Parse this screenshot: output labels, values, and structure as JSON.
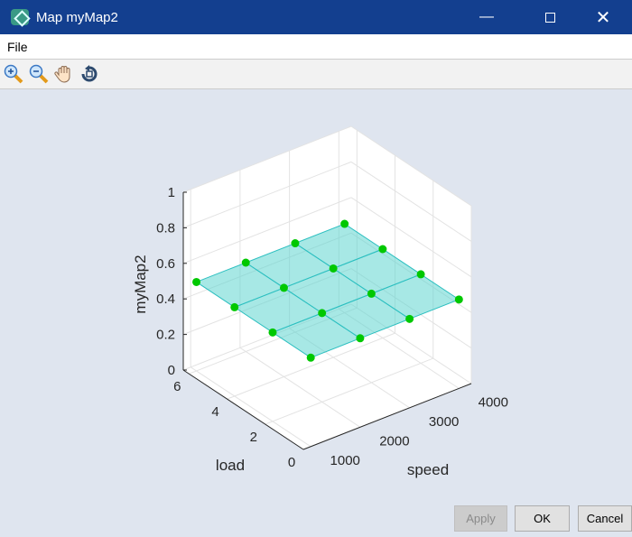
{
  "window": {
    "title": "Map myMap2",
    "minimize_icon": "minimize-icon",
    "maximize_icon": "maximize-icon",
    "close_icon": "close-icon"
  },
  "menu": {
    "file": "File"
  },
  "toolbar": {
    "icons": [
      "zoom-in-icon",
      "zoom-out-icon",
      "pan-hand-icon",
      "rotate-3d-icon"
    ]
  },
  "buttons": {
    "apply": "Apply",
    "ok": "OK",
    "cancel": "Cancel"
  },
  "chart_data": {
    "type": "surface3d",
    "xlabel": "speed",
    "ylabel": "load",
    "zlabel": "myMap2",
    "xlim": [
      850,
      4250
    ],
    "ylim": [
      0,
      6.3
    ],
    "zlim": [
      0,
      1
    ],
    "xticks": [
      "1000",
      "2000",
      "3000",
      "4000"
    ],
    "yticks": [
      "0",
      "2",
      "4",
      "6"
    ],
    "zticks": [
      "0",
      "0.2",
      "0.4",
      "0.6",
      "0.8",
      "1"
    ],
    "speed": [
      1000,
      2000,
      3000,
      4000
    ],
    "load": [
      0,
      2,
      4,
      6
    ],
    "z": [
      [
        0.5,
        0.5,
        0.5,
        0.5
      ],
      [
        0.5,
        0.5,
        0.5,
        0.5
      ],
      [
        0.5,
        0.5,
        0.5,
        0.5
      ],
      [
        0.5,
        0.5,
        0.5,
        0.5
      ]
    ],
    "grid": true,
    "colors": {
      "surface": "#5fd6d0",
      "edge": "#2cbfc0",
      "marker": "#00c800"
    }
  }
}
